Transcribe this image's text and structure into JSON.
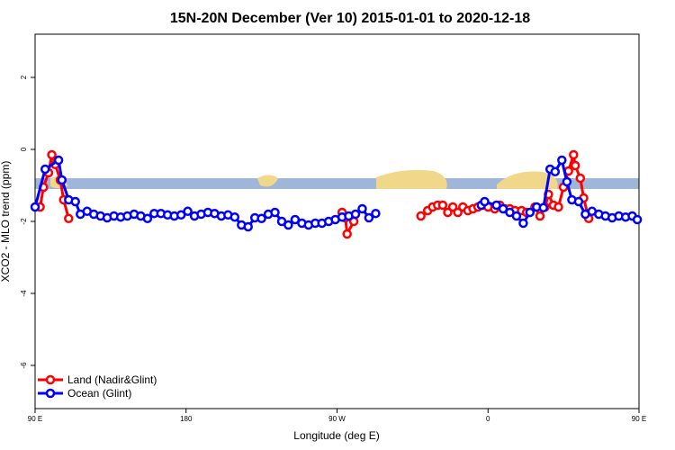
{
  "chart_data": {
    "type": "line",
    "title": "15N-20N December (Ver 10)   2015-01-01 to 2020-12-18",
    "xlabel": "Longitude (deg E)",
    "ylabel": "XCO2 - MLO trend (ppm)",
    "xlim": [
      90,
      450
    ],
    "ylim": [
      -7.2,
      3.2
    ],
    "x_ticks": [
      {
        "value": 90,
        "label": "90 E"
      },
      {
        "value": 180,
        "label": "180"
      },
      {
        "value": 270,
        "label": "90 W"
      },
      {
        "value": 360,
        "label": "0"
      },
      {
        "value": 450,
        "label": "90 E"
      },
      {
        "value": 540,
        "label": "180"
      }
    ],
    "y_ticks": [
      {
        "value": 2,
        "label": "2"
      },
      {
        "value": 0,
        "label": "0"
      },
      {
        "value": -2,
        "label": "-2"
      },
      {
        "value": -4,
        "label": "-4"
      },
      {
        "value": -6,
        "label": "-6"
      }
    ],
    "grid": false,
    "legend_position": "bottom-left",
    "series": [
      {
        "name": "Land (Nadir&Glint)",
        "color": "#ff0000",
        "points": [
          [
            93,
            -1.6
          ],
          [
            95,
            -1.05
          ],
          [
            98,
            -0.65
          ],
          [
            100,
            -0.15
          ],
          [
            102,
            -0.42
          ],
          [
            105,
            -0.85
          ],
          [
            107,
            -1.4
          ],
          [
            110,
            -1.92
          ],
          [
            273,
            -1.75
          ],
          [
            275,
            -1.9
          ],
          [
            276,
            -2.35
          ],
          [
            280,
            -2.0
          ],
          [
            320,
            -1.85
          ],
          [
            324,
            -1.7
          ],
          [
            327,
            -1.6
          ],
          [
            330,
            -1.55
          ],
          [
            333,
            -1.55
          ],
          [
            336,
            -1.75
          ],
          [
            339,
            -1.6
          ],
          [
            342,
            -1.75
          ],
          [
            345,
            -1.6
          ],
          [
            348,
            -1.7
          ],
          [
            351,
            -1.65
          ],
          [
            354,
            -1.6
          ],
          [
            357,
            -1.55
          ],
          [
            360,
            -1.6
          ],
          [
            364,
            -1.65
          ],
          [
            367,
            -1.55
          ],
          [
            370,
            -1.65
          ],
          [
            373,
            -1.65
          ],
          [
            376,
            -1.7
          ],
          [
            380,
            -1.7
          ],
          [
            383,
            -1.75
          ],
          [
            388,
            -1.6
          ],
          [
            391,
            -1.85
          ],
          [
            394,
            -1.6
          ],
          [
            396,
            -1.25
          ],
          [
            399,
            -1.55
          ],
          [
            402,
            -1.6
          ],
          [
            405,
            -1.05
          ],
          [
            408,
            -0.6
          ],
          [
            411,
            -0.15
          ],
          [
            412,
            -0.45
          ],
          [
            415,
            -0.8
          ],
          [
            417,
            -1.35
          ],
          [
            420,
            -1.92
          ]
        ]
      },
      {
        "name": "Ocean (Glint)",
        "color": "#0000ff",
        "points": [
          [
            90,
            -1.6
          ],
          [
            96,
            -0.55
          ],
          [
            104,
            -0.3
          ],
          [
            106,
            -0.85
          ],
          [
            110,
            -1.4
          ],
          [
            114,
            -1.45
          ],
          [
            117,
            -1.8
          ],
          [
            121,
            -1.72
          ],
          [
            125,
            -1.8
          ],
          [
            129,
            -1.85
          ],
          [
            133,
            -1.9
          ],
          [
            137,
            -1.85
          ],
          [
            141,
            -1.88
          ],
          [
            145,
            -1.85
          ],
          [
            149,
            -1.8
          ],
          [
            153,
            -1.85
          ],
          [
            157,
            -1.92
          ],
          [
            161,
            -1.78
          ],
          [
            165,
            -1.78
          ],
          [
            169,
            -1.82
          ],
          [
            173,
            -1.85
          ],
          [
            177,
            -1.82
          ],
          [
            181,
            -1.72
          ],
          [
            185,
            -1.85
          ],
          [
            189,
            -1.8
          ],
          [
            193,
            -1.75
          ],
          [
            197,
            -1.78
          ],
          [
            201,
            -1.85
          ],
          [
            205,
            -1.82
          ],
          [
            209,
            -1.88
          ],
          [
            213,
            -2.1
          ],
          [
            217,
            -2.15
          ],
          [
            221,
            -1.9
          ],
          [
            225,
            -1.92
          ],
          [
            229,
            -1.8
          ],
          [
            233,
            -1.75
          ],
          [
            237,
            -2.0
          ],
          [
            241,
            -2.1
          ],
          [
            245,
            -1.95
          ],
          [
            249,
            -2.05
          ],
          [
            253,
            -2.1
          ],
          [
            257,
            -2.05
          ],
          [
            261,
            -2.05
          ],
          [
            265,
            -2.0
          ],
          [
            269,
            -1.95
          ],
          [
            273,
            -1.88
          ],
          [
            277,
            -1.85
          ],
          [
            281,
            -1.8
          ],
          [
            285,
            -1.65
          ],
          [
            289,
            -1.9
          ],
          [
            293,
            -1.78
          ],
          [
            356,
            -1.55
          ],
          [
            358,
            -1.45
          ],
          [
            365,
            -1.55
          ],
          [
            369,
            -1.65
          ],
          [
            373,
            -1.75
          ],
          [
            377,
            -1.85
          ],
          [
            381,
            -2.05
          ],
          [
            385,
            -1.75
          ],
          [
            389,
            -1.6
          ],
          [
            393,
            -1.62
          ],
          [
            397,
            -0.55
          ],
          [
            400,
            -0.62
          ],
          [
            404,
            -0.3
          ],
          [
            407,
            -0.9
          ],
          [
            410,
            -1.4
          ],
          [
            414,
            -1.45
          ],
          [
            418,
            -1.8
          ],
          [
            422,
            -1.72
          ],
          [
            426,
            -1.8
          ],
          [
            430,
            -1.85
          ],
          [
            434,
            -1.9
          ],
          [
            438,
            -1.85
          ],
          [
            442,
            -1.88
          ],
          [
            446,
            -1.85
          ],
          [
            449,
            -1.95
          ]
        ]
      }
    ]
  }
}
